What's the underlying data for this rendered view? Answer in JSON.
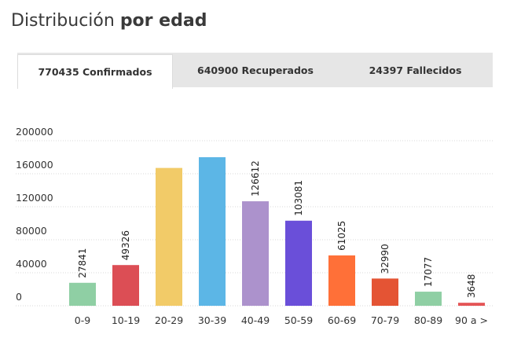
{
  "header": {
    "title_part1": "Distribución ",
    "title_part2": "por edad"
  },
  "tabs": [
    {
      "label": "770435 Confirmados",
      "active": true
    },
    {
      "label": "640900 Recuperados",
      "active": false
    },
    {
      "label": "24397 Fallecidos",
      "active": false
    }
  ],
  "chart_data": {
    "type": "bar",
    "categories": [
      "0-9",
      "10-19",
      "20-29",
      "30-39",
      "40-49",
      "50-59",
      "60-69",
      "70-79",
      "80-89",
      "90 a >"
    ],
    "values": [
      27841,
      49326,
      167000,
      180000,
      126612,
      103081,
      61025,
      32990,
      17077,
      3648
    ],
    "data_labels": [
      "27841",
      "49326",
      "",
      "",
      "126612",
      "103081",
      "61025",
      "32990",
      "17077",
      "3648"
    ],
    "colors": [
      "#8fcfa4",
      "#dc4e55",
      "#f2cb68",
      "#5cb6e6",
      "#ac92cc",
      "#6a4fd9",
      "#ff7038",
      "#e45434",
      "#8fcfa4",
      "#e45455"
    ],
    "yticks": [
      "0",
      "40000",
      "80000",
      "120000",
      "160000",
      "200000"
    ],
    "ylim": [
      0,
      200000
    ],
    "title": "",
    "xlabel": "",
    "ylabel": "",
    "grid": true
  }
}
